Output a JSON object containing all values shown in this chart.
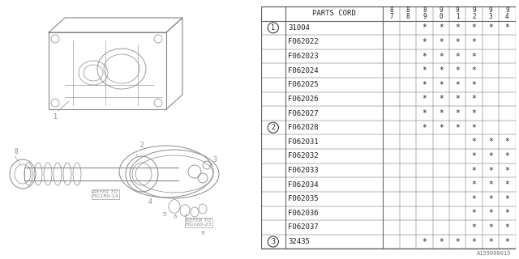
{
  "watermark": "A159000015",
  "header_label": "PARTS CORD",
  "years": [
    "8\n7",
    "8\n8",
    "8\n9",
    "9\n0",
    "9\n1",
    "9\n2",
    "9\n3",
    "9\n4"
  ],
  "rows": [
    {
      "circle": "1",
      "part": "31004",
      "marks": [
        0,
        0,
        1,
        1,
        1,
        1,
        1,
        1
      ]
    },
    {
      "circle": "",
      "part": "F062022",
      "marks": [
        0,
        0,
        1,
        1,
        1,
        1,
        0,
        0
      ]
    },
    {
      "circle": "",
      "part": "F062023",
      "marks": [
        0,
        0,
        1,
        1,
        1,
        1,
        0,
        0
      ]
    },
    {
      "circle": "",
      "part": "F062024",
      "marks": [
        0,
        0,
        1,
        1,
        1,
        1,
        0,
        0
      ]
    },
    {
      "circle": "",
      "part": "F062025",
      "marks": [
        0,
        0,
        1,
        1,
        1,
        1,
        0,
        0
      ]
    },
    {
      "circle": "",
      "part": "F062026",
      "marks": [
        0,
        0,
        1,
        1,
        1,
        1,
        0,
        0
      ]
    },
    {
      "circle": "",
      "part": "F062027",
      "marks": [
        0,
        0,
        1,
        1,
        1,
        1,
        0,
        0
      ]
    },
    {
      "circle": "2",
      "part": "F062028",
      "marks": [
        0,
        0,
        1,
        1,
        1,
        1,
        0,
        0
      ]
    },
    {
      "circle": "",
      "part": "F062031",
      "marks": [
        0,
        0,
        0,
        0,
        0,
        1,
        1,
        1
      ]
    },
    {
      "circle": "",
      "part": "F062032",
      "marks": [
        0,
        0,
        0,
        0,
        0,
        1,
        1,
        1
      ]
    },
    {
      "circle": "",
      "part": "F062033",
      "marks": [
        0,
        0,
        0,
        0,
        0,
        1,
        1,
        1
      ]
    },
    {
      "circle": "",
      "part": "F062034",
      "marks": [
        0,
        0,
        0,
        0,
        0,
        1,
        1,
        1
      ]
    },
    {
      "circle": "",
      "part": "F062035",
      "marks": [
        0,
        0,
        0,
        0,
        0,
        1,
        1,
        1
      ]
    },
    {
      "circle": "",
      "part": "F062036",
      "marks": [
        0,
        0,
        0,
        0,
        0,
        1,
        1,
        1
      ]
    },
    {
      "circle": "",
      "part": "F062037",
      "marks": [
        0,
        0,
        0,
        0,
        0,
        1,
        1,
        1
      ]
    },
    {
      "circle": "3",
      "part": "32435",
      "marks": [
        0,
        0,
        1,
        1,
        1,
        1,
        1,
        1
      ]
    }
  ],
  "bg_color": "#ffffff",
  "line_color": "#666666",
  "text_color": "#222222",
  "draw_color": "#888888",
  "font_size": 6.5
}
